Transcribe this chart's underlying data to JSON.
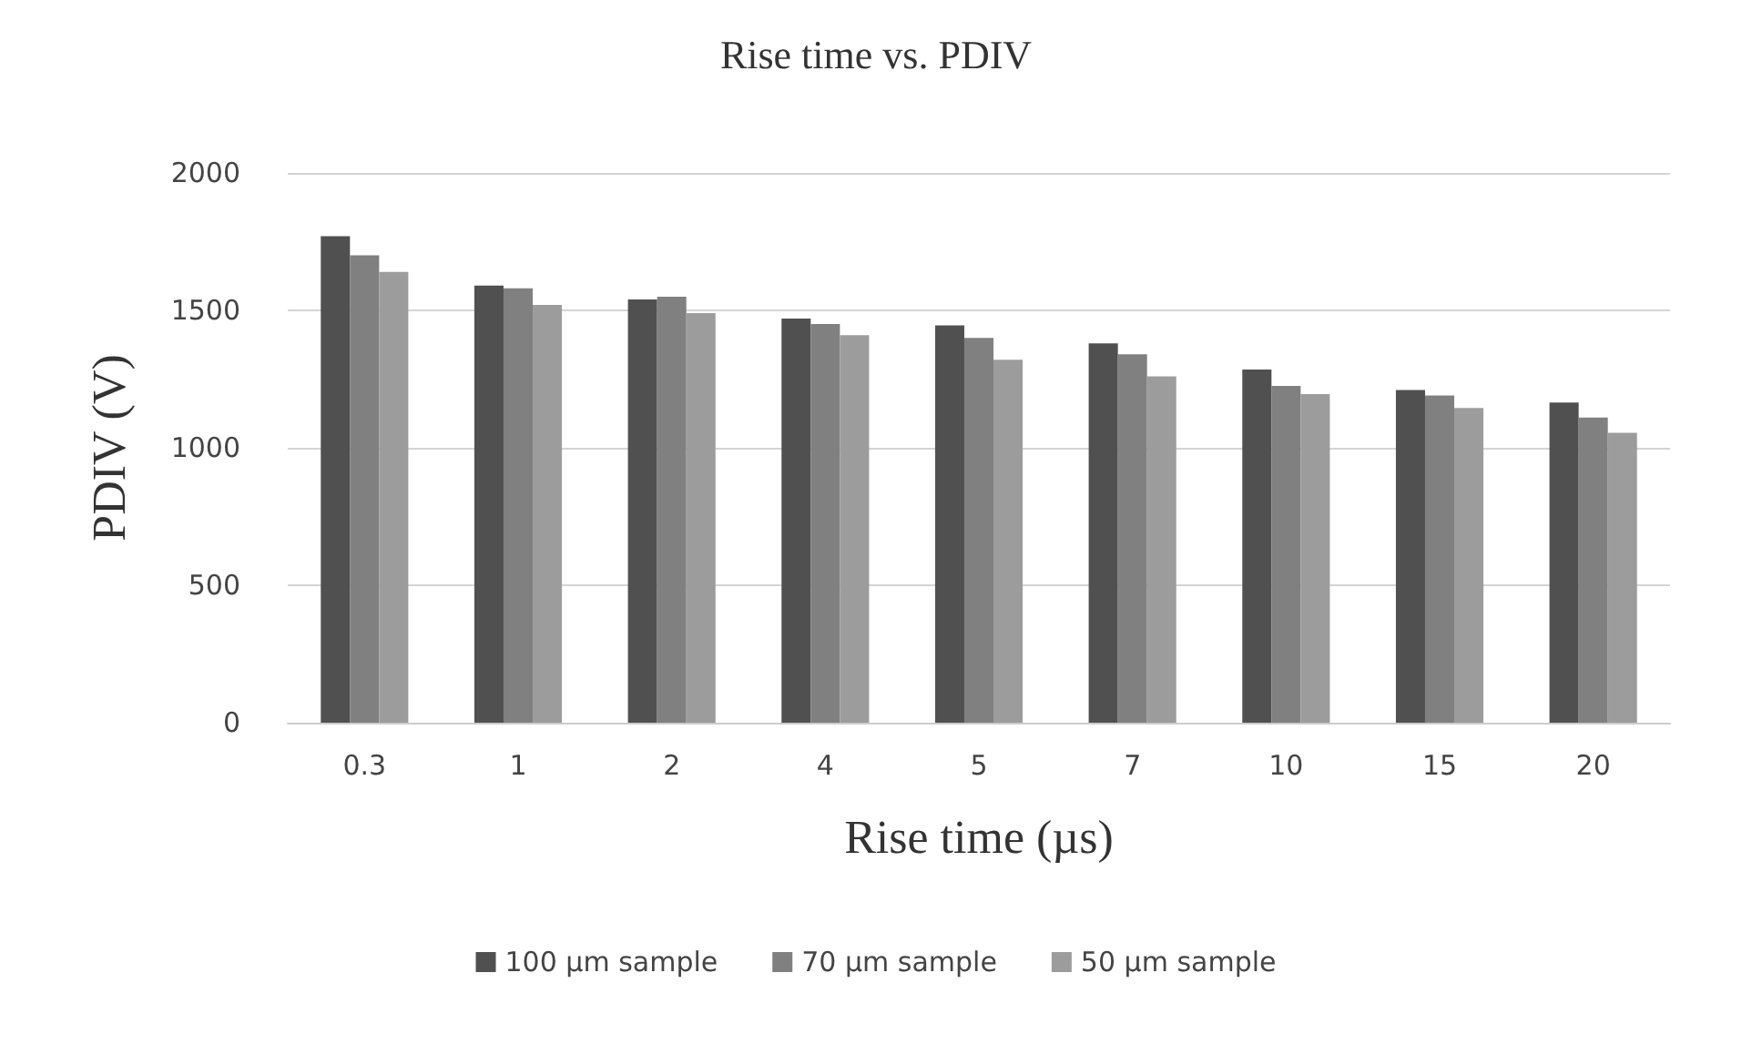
{
  "chart_data": {
    "type": "bar",
    "title": "Rise time vs. PDIV",
    "xlabel": "Rise time (µs)",
    "ylabel": "PDIV (V)",
    "categories": [
      "0.3",
      "1",
      "2",
      "4",
      "5",
      "7",
      "10",
      "15",
      "20"
    ],
    "series": [
      {
        "name": "100 µm sample",
        "color": "#505050",
        "values": [
          1770,
          1590,
          1540,
          1470,
          1445,
          1380,
          1285,
          1210,
          1165
        ]
      },
      {
        "name": "70 µm sample",
        "color": "#808080",
        "values": [
          1700,
          1580,
          1550,
          1450,
          1400,
          1340,
          1225,
          1190,
          1110
        ]
      },
      {
        "name": "50 µm sample",
        "color": "#9c9c9c",
        "values": [
          1640,
          1520,
          1490,
          1410,
          1320,
          1260,
          1195,
          1145,
          1055
        ]
      }
    ],
    "ylim": [
      0,
      2000
    ],
    "yticks": [
      0,
      500,
      1000,
      1500,
      2000
    ],
    "grid": "y",
    "legend": "bottom"
  }
}
